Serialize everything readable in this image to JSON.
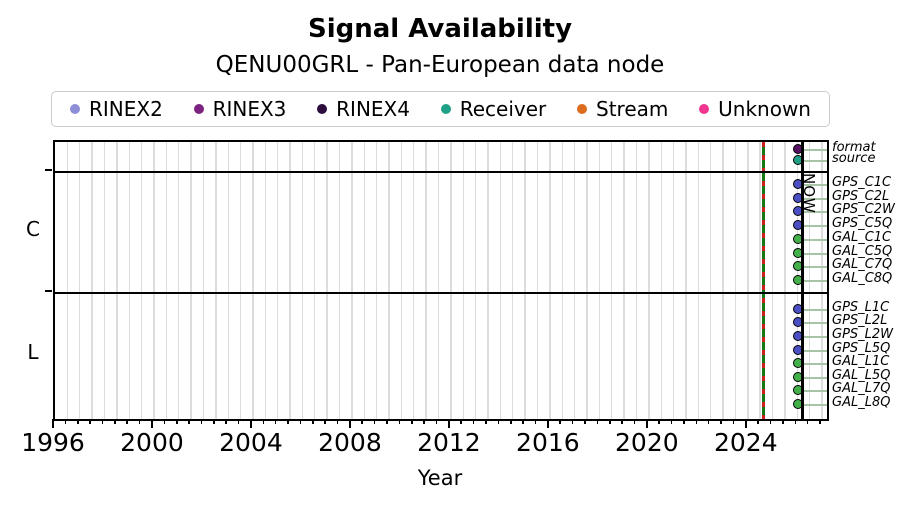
{
  "title": "Signal Availability",
  "subtitle": "QENU00GRL - Pan-European data node",
  "now_label": "NOW",
  "chart_data": {
    "type": "scatter",
    "title": "Signal Availability",
    "subtitle": "QENU00GRL - Pan-European data node",
    "xlabel": "Year",
    "xlim": [
      1996,
      2027.2
    ],
    "x_major_ticks": [
      1996,
      2000,
      2004,
      2008,
      2012,
      2016,
      2020,
      2024
    ],
    "x_minor_step": 0.5,
    "grid": "vertical-minor-halfyear",
    "legend_position": "top",
    "legend_items": [
      {
        "label": "RINEX2",
        "color": "#8d8ed6"
      },
      {
        "label": "RINEX3",
        "color": "#7c2382"
      },
      {
        "label": "RINEX4",
        "color": "#2d0c3e"
      },
      {
        "label": "Receiver",
        "color": "#1fa187"
      },
      {
        "label": "Stream",
        "color": "#dd6d1e"
      },
      {
        "label": "Unknown",
        "color": "#f0368f"
      }
    ],
    "row_line_color": "#a7c4a7",
    "row_line_end_x": 2027.2,
    "bands": [
      {
        "label": "",
        "rows": [
          {
            "name": "format",
            "marker_x": 2026.05,
            "color": "#550f63",
            "category": "RINEX3"
          },
          {
            "name": "source",
            "marker_x": 2026.05,
            "color": "#1fa187",
            "category": "Receiver"
          }
        ]
      },
      {
        "label": "C",
        "rows": [
          {
            "name": "GPS_C1C",
            "marker_x": 2026.05,
            "color": "#4a4fc3"
          },
          {
            "name": "GPS_C2L",
            "marker_x": 2026.05,
            "color": "#4a4fc3"
          },
          {
            "name": "GPS_C2W",
            "marker_x": 2026.05,
            "color": "#4a4fc3"
          },
          {
            "name": "GPS_C5Q",
            "marker_x": 2026.05,
            "color": "#4a4fc3"
          },
          {
            "name": "GAL_C1C",
            "marker_x": 2026.05,
            "color": "#44b04a"
          },
          {
            "name": "GAL_C5Q",
            "marker_x": 2026.05,
            "color": "#44b04a"
          },
          {
            "name": "GAL_C7Q",
            "marker_x": 2026.05,
            "color": "#44b04a"
          },
          {
            "name": "GAL_C8Q",
            "marker_x": 2026.05,
            "color": "#44b04a"
          }
        ]
      },
      {
        "label": "L",
        "rows": [
          {
            "name": "GPS_L1C",
            "marker_x": 2026.05,
            "color": "#4a4fc3"
          },
          {
            "name": "GPS_L2L",
            "marker_x": 2026.05,
            "color": "#4a4fc3"
          },
          {
            "name": "GPS_L2W",
            "marker_x": 2026.05,
            "color": "#4a4fc3"
          },
          {
            "name": "GPS_L5Q",
            "marker_x": 2026.05,
            "color": "#4a4fc3"
          },
          {
            "name": "GAL_L1C",
            "marker_x": 2026.05,
            "color": "#44b04a"
          },
          {
            "name": "GAL_L5Q",
            "marker_x": 2026.05,
            "color": "#44b04a"
          },
          {
            "name": "GAL_L7Q",
            "marker_x": 2026.05,
            "color": "#44b04a"
          },
          {
            "name": "GAL_L8Q",
            "marker_x": 2026.05,
            "color": "#44b04a"
          }
        ]
      }
    ],
    "vlines": [
      {
        "x": 2024.65,
        "style": "dashed",
        "dash_colors": [
          "#cc2020",
          "#157815"
        ]
      },
      {
        "x": 2026.2,
        "style": "solid",
        "color": "#000000",
        "label": "NOW"
      }
    ]
  }
}
